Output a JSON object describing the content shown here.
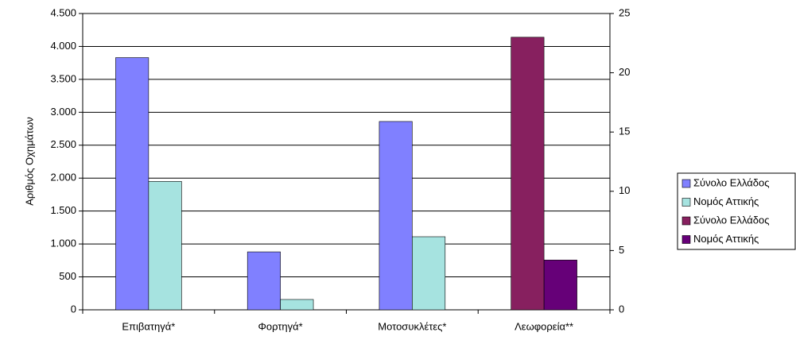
{
  "chart_data": {
    "type": "bar",
    "ylabel": "Αριθμός Οχημάτων",
    "categories": [
      "Επιβατηγά*",
      "Φορτηγά*",
      "Μοτοσυκλέτες*",
      "Λεωφορεία**"
    ],
    "series": [
      {
        "name": "Σύνολο Ελλάδος",
        "color": "#8080ff",
        "values": [
          3830,
          880,
          2860,
          null
        ]
      },
      {
        "name": "Νομός Αττικής",
        "color": "#a6e3e0",
        "values": [
          1950,
          157,
          1110,
          null
        ]
      },
      {
        "name": "Σύνολο Ελλάδος",
        "color": "#87205f",
        "axis": "y2",
        "values": [
          null,
          null,
          null,
          23
        ]
      },
      {
        "name": "Νομός Αττικής",
        "color": "#660078",
        "axis": "y2",
        "values": [
          null,
          null,
          null,
          4.2
        ]
      }
    ],
    "ylim": [
      0,
      4500
    ],
    "yticks": [
      0,
      500,
      {
        "value": 1000,
        "label": "1.000"
      },
      {
        "value": 1500,
        "label": "1.500"
      },
      {
        "value": 2000,
        "label": "2.000"
      },
      {
        "value": 2500,
        "label": "2.500"
      },
      {
        "value": 3000,
        "label": "3.000"
      },
      {
        "value": 3500,
        "label": "3.500"
      },
      {
        "value": 4000,
        "label": "4.000"
      },
      {
        "value": 4500,
        "label": "4.500"
      }
    ],
    "y2lim": [
      0,
      25
    ],
    "y2ticks": [
      0,
      5,
      10,
      15,
      20,
      25
    ],
    "grid": true,
    "legend": "right"
  }
}
